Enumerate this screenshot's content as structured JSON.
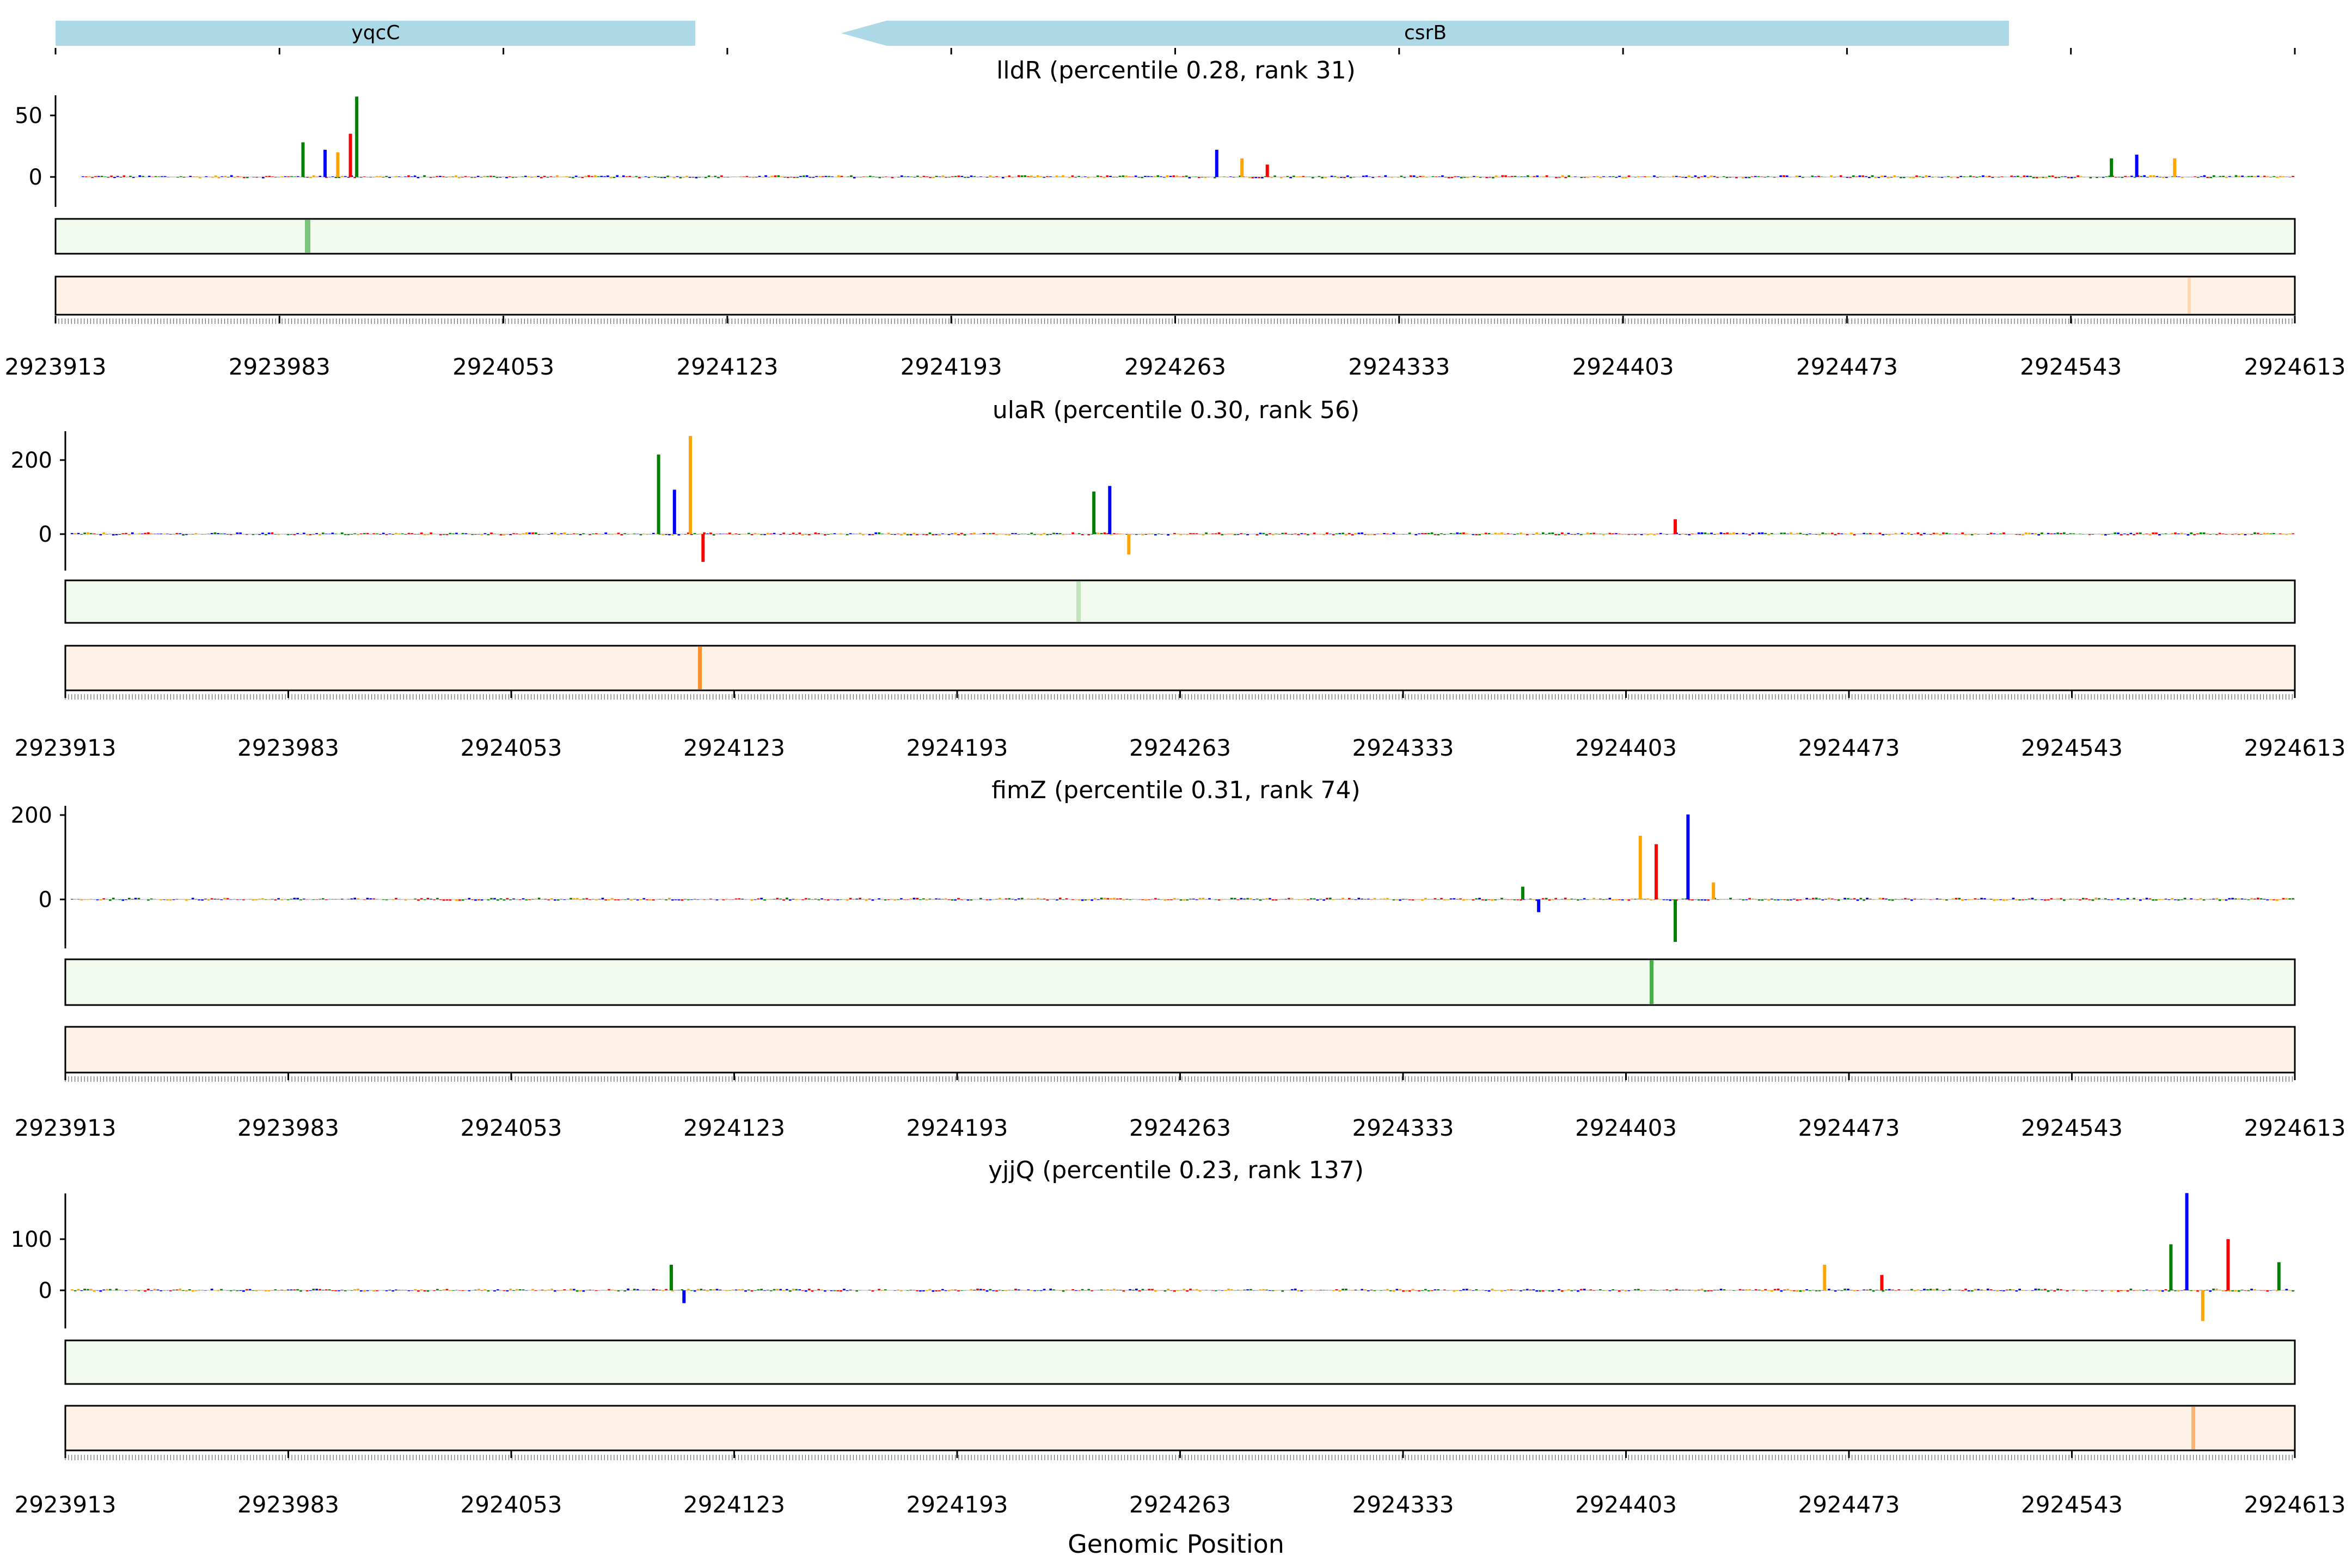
{
  "figure": {
    "xlabel": "Genomic Position"
  },
  "genes": [
    {
      "name": "yqcC",
      "start": 2923913,
      "end": 2924121,
      "strand": "+",
      "color": "#add8e6"
    },
    {
      "name": "csrB",
      "start": 2924164,
      "end": 2924545,
      "strand": "-",
      "color": "#add8e6"
    }
  ],
  "colors": {
    "A": "#008000",
    "C": "#0000ff",
    "G": "#ffa500",
    "T": "#ff0000",
    "track_green": "#f2f9ee",
    "track_orange": "#fef2e7",
    "green_peak": "#2ca02c",
    "orange_peak": "#ff7f0e"
  },
  "chart_data": [
    {
      "type": "line",
      "title": "lldR (percentile 0.28, rank 31)",
      "xlim": [
        2923913,
        2924613
      ],
      "xticks": [
        "2923913",
        "2923983",
        "2924053",
        "2924123",
        "2924193",
        "2924263",
        "2924333",
        "2924403",
        "2924473",
        "2924543",
        "2924613"
      ],
      "ylim": [
        -18,
        65
      ],
      "yticks": [
        0,
        50
      ],
      "attribution_peaks": [
        {
          "x": 2923983,
          "y": 28
        },
        {
          "x": 2923990,
          "y": 22
        },
        {
          "x": 2923994,
          "y": 20
        },
        {
          "x": 2923998,
          "y": 35
        },
        {
          "x": 2924000,
          "y": 65
        },
        {
          "x": 2924272,
          "y": 22
        },
        {
          "x": 2924280,
          "y": 15
        },
        {
          "x": 2924288,
          "y": 10
        },
        {
          "x": 2924555,
          "y": 15
        },
        {
          "x": 2924563,
          "y": 18
        },
        {
          "x": 2924575,
          "y": 15
        }
      ],
      "green_track_peak": 2923991,
      "orange_track_peak": 2924590
    },
    {
      "type": "line",
      "title": "ulaR (percentile 0.30, rank 56)",
      "xlim": [
        2923913,
        2924613
      ],
      "xticks": [
        "2923913",
        "2923983",
        "2924053",
        "2924123",
        "2924193",
        "2924263",
        "2924333",
        "2924403",
        "2924473",
        "2924543",
        "2924613"
      ],
      "ylim": [
        -85,
        270
      ],
      "yticks": [
        0,
        200
      ],
      "attribution_peaks": [
        {
          "x": 2924098,
          "y": 215
        },
        {
          "x": 2924103,
          "y": 120
        },
        {
          "x": 2924108,
          "y": 265
        },
        {
          "x": 2924112,
          "y": -75
        },
        {
          "x": 2924235,
          "y": 115
        },
        {
          "x": 2924240,
          "y": 130
        },
        {
          "x": 2924246,
          "y": -55
        },
        {
          "x": 2924418,
          "y": 40
        }
      ],
      "green_track_peak": 2924228,
      "orange_track_peak": 2924111
    },
    {
      "type": "line",
      "title": "fimZ (percentile 0.31, rank 74)",
      "xlim": [
        2923913,
        2924613
      ],
      "xticks": [
        "2923913",
        "2923983",
        "2924053",
        "2924123",
        "2924193",
        "2924263",
        "2924333",
        "2924403",
        "2924473",
        "2924543",
        "2924613"
      ],
      "ylim": [
        -110,
        205
      ],
      "yticks": [
        0,
        200
      ],
      "attribution_peaks": [
        {
          "x": 2924370,
          "y": 30
        },
        {
          "x": 2924375,
          "y": -30
        },
        {
          "x": 2924407,
          "y": 150
        },
        {
          "x": 2924412,
          "y": 130
        },
        {
          "x": 2924418,
          "y": -100
        },
        {
          "x": 2924422,
          "y": 200
        },
        {
          "x": 2924430,
          "y": 40
        }
      ],
      "green_track_peak": 2924420,
      "orange_track_peak": null
    },
    {
      "type": "line",
      "title": "yjjQ (percentile 0.23, rank 137)",
      "xlim": [
        2923913,
        2924613
      ],
      "xticks": [
        "2923913",
        "2923983",
        "2924053",
        "2924123",
        "2924193",
        "2924263",
        "2924333",
        "2924403",
        "2924473",
        "2924543",
        "2924613"
      ],
      "ylim": [
        -70,
        190
      ],
      "yticks": [
        0,
        100
      ],
      "attribution_peaks": [
        {
          "x": 2924102,
          "y": 50
        },
        {
          "x": 2924106,
          "y": -25
        },
        {
          "x": 2924465,
          "y": 50
        },
        {
          "x": 2924483,
          "y": 30
        },
        {
          "x": 2924574,
          "y": 90
        },
        {
          "x": 2924579,
          "y": 190
        },
        {
          "x": 2924584,
          "y": -60
        },
        {
          "x": 2924592,
          "y": 100
        },
        {
          "x": 2924608,
          "y": 55
        }
      ],
      "green_track_peak": null,
      "orange_track_peak": 2924584
    }
  ]
}
